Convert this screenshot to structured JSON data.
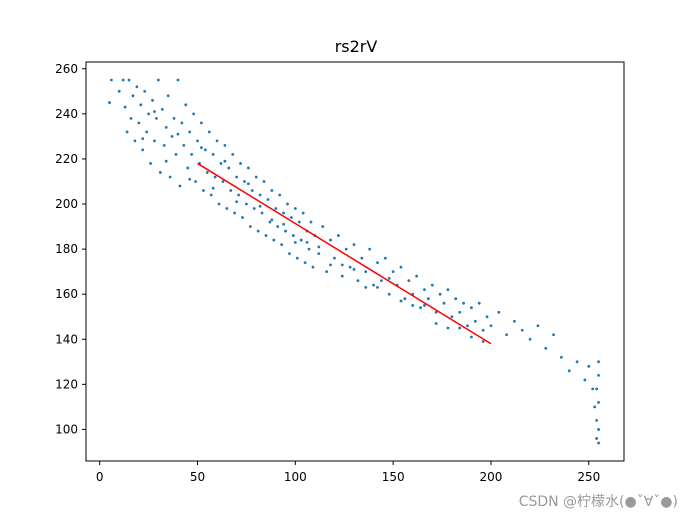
{
  "chart_data": {
    "type": "scatter",
    "title": "rs2rV",
    "xlabel": "",
    "ylabel": "",
    "xlim": [
      -7,
      268
    ],
    "ylim": [
      86,
      263
    ],
    "xticks": [
      0,
      50,
      100,
      150,
      200,
      250
    ],
    "yticks": [
      100,
      120,
      140,
      160,
      180,
      200,
      220,
      240,
      260
    ],
    "grid": false,
    "series": [
      {
        "kind": "scatter",
        "color": "#1f77b4",
        "points": [
          [
            5,
            245
          ],
          [
            6,
            255
          ],
          [
            10,
            250
          ],
          [
            12,
            255
          ],
          [
            13,
            243
          ],
          [
            14,
            232
          ],
          [
            15,
            255
          ],
          [
            16,
            238
          ],
          [
            17,
            248
          ],
          [
            18,
            228
          ],
          [
            19,
            252
          ],
          [
            20,
            236
          ],
          [
            21,
            244
          ],
          [
            22,
            224
          ],
          [
            23,
            250
          ],
          [
            24,
            232
          ],
          [
            25,
            240
          ],
          [
            26,
            218
          ],
          [
            27,
            246
          ],
          [
            28,
            228
          ],
          [
            29,
            238
          ],
          [
            30,
            255
          ],
          [
            31,
            214
          ],
          [
            32,
            242
          ],
          [
            33,
            226
          ],
          [
            34,
            234
          ],
          [
            35,
            248
          ],
          [
            36,
            212
          ],
          [
            37,
            230
          ],
          [
            38,
            238
          ],
          [
            39,
            222
          ],
          [
            40,
            255
          ],
          [
            41,
            208
          ],
          [
            42,
            236
          ],
          [
            43,
            226
          ],
          [
            44,
            244
          ],
          [
            45,
            216
          ],
          [
            46,
            232
          ],
          [
            47,
            222
          ],
          [
            48,
            240
          ],
          [
            49,
            210
          ],
          [
            50,
            228
          ],
          [
            51,
            218
          ],
          [
            52,
            236
          ],
          [
            53,
            206
          ],
          [
            54,
            224
          ],
          [
            55,
            214
          ],
          [
            56,
            232
          ],
          [
            57,
            204
          ],
          [
            58,
            222
          ],
          [
            59,
            212
          ],
          [
            60,
            228
          ],
          [
            61,
            200
          ],
          [
            62,
            218
          ],
          [
            63,
            210
          ],
          [
            64,
            226
          ],
          [
            65,
            198
          ],
          [
            66,
            216
          ],
          [
            67,
            206
          ],
          [
            68,
            222
          ],
          [
            69,
            196
          ],
          [
            70,
            212
          ],
          [
            71,
            204
          ],
          [
            72,
            218
          ],
          [
            73,
            194
          ],
          [
            74,
            210
          ],
          [
            75,
            200
          ],
          [
            76,
            216
          ],
          [
            77,
            190
          ],
          [
            78,
            206
          ],
          [
            79,
            198
          ],
          [
            80,
            212
          ],
          [
            81,
            188
          ],
          [
            82,
            204
          ],
          [
            83,
            196
          ],
          [
            84,
            210
          ],
          [
            85,
            186
          ],
          [
            86,
            202
          ],
          [
            87,
            192
          ],
          [
            88,
            206
          ],
          [
            89,
            184
          ],
          [
            90,
            198
          ],
          [
            91,
            190
          ],
          [
            92,
            204
          ],
          [
            93,
            182
          ],
          [
            94,
            196
          ],
          [
            95,
            188
          ],
          [
            96,
            200
          ],
          [
            97,
            178
          ],
          [
            98,
            194
          ],
          [
            99,
            186
          ],
          [
            100,
            198
          ],
          [
            101,
            176
          ],
          [
            102,
            192
          ],
          [
            103,
            184
          ],
          [
            104,
            196
          ],
          [
            105,
            174
          ],
          [
            106,
            188
          ],
          [
            107,
            180
          ],
          [
            108,
            192
          ],
          [
            109,
            172
          ],
          [
            110,
            186
          ],
          [
            112,
            178
          ],
          [
            114,
            190
          ],
          [
            116,
            170
          ],
          [
            118,
            184
          ],
          [
            120,
            176
          ],
          [
            122,
            186
          ],
          [
            124,
            168
          ],
          [
            126,
            180
          ],
          [
            128,
            172
          ],
          [
            130,
            182
          ],
          [
            132,
            166
          ],
          [
            134,
            176
          ],
          [
            136,
            170
          ],
          [
            138,
            180
          ],
          [
            140,
            164
          ],
          [
            142,
            174
          ],
          [
            144,
            166
          ],
          [
            146,
            176
          ],
          [
            148,
            160
          ],
          [
            150,
            170
          ],
          [
            152,
            164
          ],
          [
            154,
            172
          ],
          [
            156,
            158
          ],
          [
            158,
            166
          ],
          [
            160,
            160
          ],
          [
            162,
            168
          ],
          [
            164,
            154
          ],
          [
            166,
            162
          ],
          [
            168,
            158
          ],
          [
            170,
            164
          ],
          [
            172,
            152
          ],
          [
            174,
            160
          ],
          [
            176,
            156
          ],
          [
            178,
            162
          ],
          [
            180,
            150
          ],
          [
            182,
            158
          ],
          [
            184,
            152
          ],
          [
            186,
            156
          ],
          [
            188,
            146
          ],
          [
            190,
            154
          ],
          [
            192,
            148
          ],
          [
            194,
            156
          ],
          [
            196,
            144
          ],
          [
            198,
            150
          ],
          [
            200,
            146
          ],
          [
            204,
            152
          ],
          [
            208,
            142
          ],
          [
            212,
            148
          ],
          [
            216,
            144
          ],
          [
            220,
            140
          ],
          [
            224,
            146
          ],
          [
            228,
            136
          ],
          [
            232,
            142
          ],
          [
            236,
            132
          ],
          [
            240,
            126
          ],
          [
            244,
            130
          ],
          [
            248,
            122
          ],
          [
            250,
            128
          ],
          [
            252,
            118
          ],
          [
            253,
            110
          ],
          [
            254,
            104
          ],
          [
            254,
            96
          ],
          [
            255,
            124
          ],
          [
            255,
            100
          ],
          [
            255,
            112
          ],
          [
            255,
            94
          ],
          [
            255,
            130
          ],
          [
            254,
            118
          ],
          [
            22,
            229
          ],
          [
            28,
            241
          ],
          [
            34,
            219
          ],
          [
            40,
            231
          ],
          [
            46,
            211
          ],
          [
            52,
            225
          ],
          [
            58,
            207
          ],
          [
            64,
            219
          ],
          [
            70,
            201
          ],
          [
            76,
            209
          ],
          [
            82,
            199
          ],
          [
            88,
            193
          ],
          [
            94,
            191
          ],
          [
            100,
            183
          ],
          [
            106,
            183
          ],
          [
            112,
            181
          ],
          [
            118,
            173
          ],
          [
            124,
            173
          ],
          [
            130,
            171
          ],
          [
            136,
            163
          ],
          [
            142,
            163
          ],
          [
            148,
            167
          ],
          [
            154,
            157
          ],
          [
            160,
            155
          ],
          [
            166,
            155
          ],
          [
            172,
            147
          ],
          [
            178,
            145
          ],
          [
            184,
            145
          ],
          [
            190,
            141
          ],
          [
            196,
            139
          ]
        ]
      },
      {
        "kind": "line",
        "color": "#ff0000",
        "points": [
          [
            50,
            218
          ],
          [
            200,
            138
          ]
        ]
      }
    ]
  },
  "watermark": "CSDN @柠檬水(●ˇ∀ˇ●)"
}
